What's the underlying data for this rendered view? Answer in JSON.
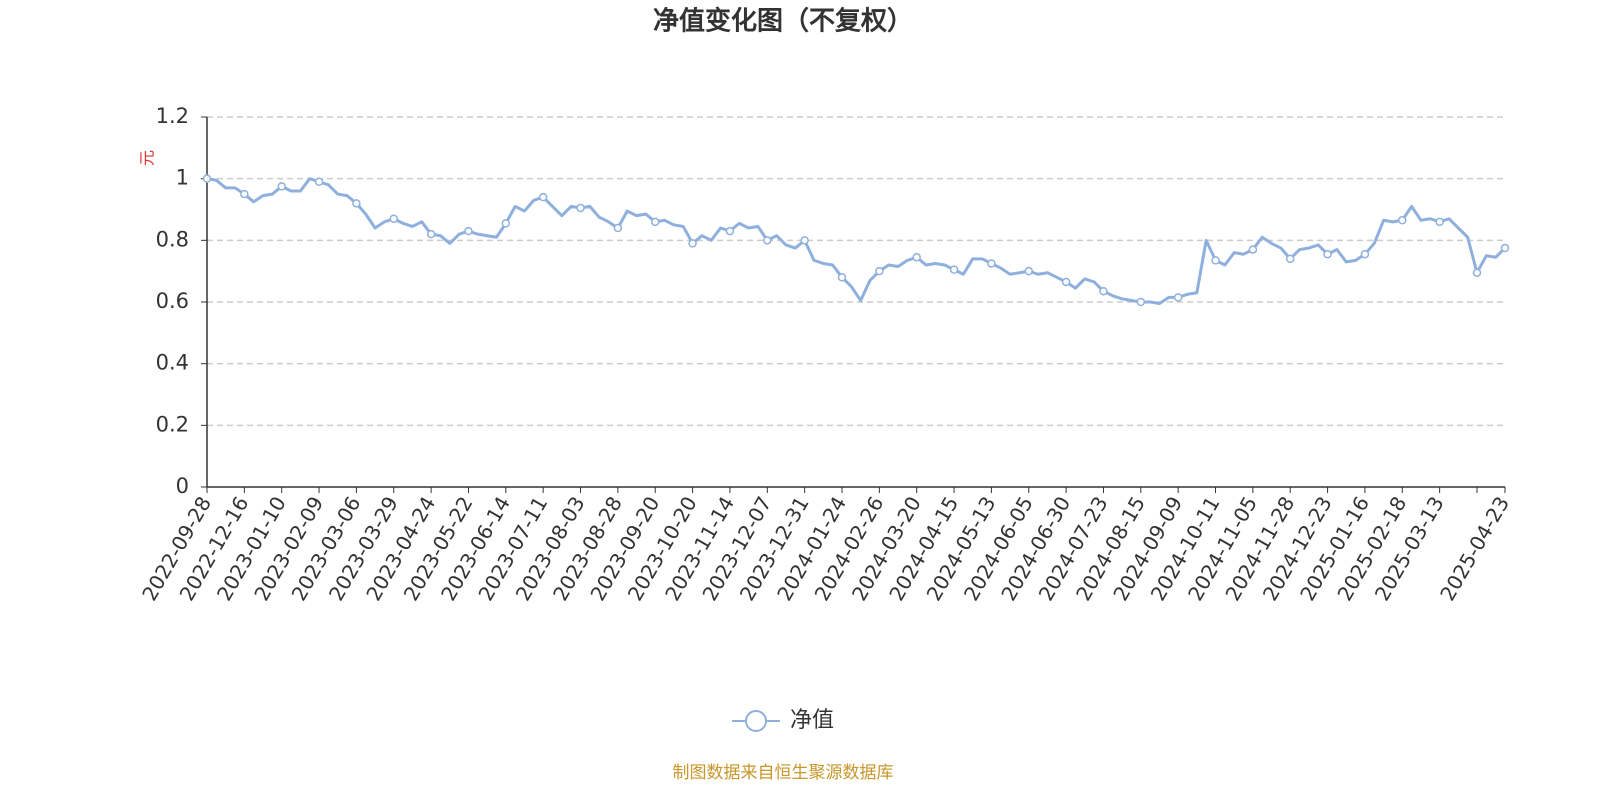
{
  "chart_data": {
    "type": "line",
    "title": "净值变化图（不复权）",
    "y_label": "元",
    "source": "制图数据来自恒生聚源数据库",
    "categories": [
      "2022-09-28",
      null,
      null,
      null,
      "2022-12-16",
      null,
      null,
      null,
      "2023-01-10",
      null,
      null,
      null,
      "2023-02-09",
      null,
      null,
      null,
      "2023-03-06",
      null,
      null,
      null,
      "2023-03-29",
      null,
      null,
      null,
      "2023-04-24",
      null,
      null,
      null,
      "2023-05-22",
      null,
      null,
      null,
      "2023-06-14",
      null,
      null,
      null,
      "2023-07-11",
      null,
      null,
      null,
      "2023-08-03",
      null,
      null,
      null,
      "2023-08-28",
      null,
      null,
      null,
      "2023-09-20",
      null,
      null,
      null,
      "2023-10-20",
      null,
      null,
      null,
      "2023-11-14",
      null,
      null,
      null,
      "2023-12-07",
      null,
      null,
      null,
      "2023-12-31",
      null,
      null,
      null,
      "2024-01-24",
      null,
      null,
      null,
      "2024-02-26",
      null,
      null,
      null,
      "2024-03-20",
      null,
      null,
      null,
      "2024-04-15",
      null,
      null,
      null,
      "2024-05-13",
      null,
      null,
      null,
      "2024-06-05",
      null,
      null,
      null,
      "2024-06-30",
      null,
      null,
      null,
      "2024-07-23",
      null,
      null,
      null,
      "2024-08-15",
      null,
      null,
      null,
      "2024-09-09",
      null,
      null,
      null,
      "2024-10-11",
      null,
      null,
      null,
      "2024-11-05",
      null,
      null,
      null,
      "2024-11-28",
      null,
      null,
      null,
      "2024-12-23",
      null,
      null,
      null,
      "2025-01-16",
      null,
      null,
      null,
      "2025-02-18",
      null,
      null,
      null,
      "2025-03-13",
      null,
      null,
      null,
      null,
      null,
      null,
      "2025-04-23"
    ],
    "series": [
      {
        "name": "净值",
        "color": "#8fb0dd",
        "values": [
          1.0,
          0.995,
          0.97,
          0.97,
          0.95,
          0.925,
          0.945,
          0.95,
          0.975,
          0.96,
          0.96,
          1.0,
          0.99,
          0.98,
          0.95,
          0.945,
          0.92,
          0.885,
          0.84,
          0.86,
          0.87,
          0.855,
          0.845,
          0.86,
          0.82,
          0.815,
          0.79,
          0.82,
          0.83,
          0.82,
          0.815,
          0.81,
          0.855,
          0.91,
          0.895,
          0.93,
          0.94,
          0.91,
          0.88,
          0.91,
          0.905,
          0.91,
          0.875,
          0.86,
          0.84,
          0.895,
          0.88,
          0.885,
          0.86,
          0.865,
          0.85,
          0.845,
          0.79,
          0.815,
          0.8,
          0.84,
          0.83,
          0.855,
          0.84,
          0.845,
          0.8,
          0.815,
          0.785,
          0.775,
          0.8,
          0.735,
          0.725,
          0.72,
          0.68,
          0.65,
          0.605,
          0.67,
          0.7,
          0.72,
          0.715,
          0.735,
          0.745,
          0.72,
          0.725,
          0.72,
          0.705,
          0.69,
          0.74,
          0.74,
          0.725,
          0.71,
          0.69,
          0.695,
          0.7,
          0.69,
          0.695,
          0.68,
          0.665,
          0.645,
          0.675,
          0.665,
          0.635,
          0.62,
          0.61,
          0.605,
          0.6,
          0.6,
          0.595,
          0.615,
          0.615,
          0.625,
          0.63,
          0.8,
          0.735,
          0.72,
          0.76,
          0.755,
          0.77,
          0.81,
          0.79,
          0.775,
          0.74,
          0.77,
          0.775,
          0.785,
          0.755,
          0.77,
          0.73,
          0.735,
          0.755,
          0.79,
          0.865,
          0.86,
          0.865,
          0.91,
          0.865,
          0.87,
          0.86,
          0.87,
          0.84,
          0.81,
          0.695,
          0.75,
          0.745,
          0.775
        ]
      }
    ],
    "ylim": [
      0,
      1.2
    ],
    "yticks": [
      0,
      0.2,
      0.4,
      0.6,
      0.8,
      1,
      1.2
    ],
    "grid": true
  }
}
